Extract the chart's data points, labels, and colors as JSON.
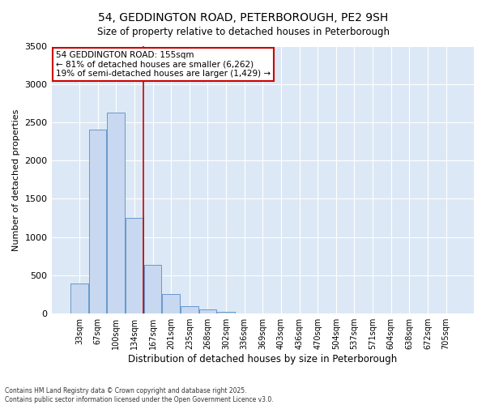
{
  "title_line1": "54, GEDDINGTON ROAD, PETERBOROUGH, PE2 9SH",
  "title_line2": "Size of property relative to detached houses in Peterborough",
  "xlabel": "Distribution of detached houses by size in Peterborough",
  "ylabel": "Number of detached properties",
  "categories": [
    "33sqm",
    "67sqm",
    "100sqm",
    "134sqm",
    "167sqm",
    "201sqm",
    "235sqm",
    "268sqm",
    "302sqm",
    "336sqm",
    "369sqm",
    "403sqm",
    "436sqm",
    "470sqm",
    "504sqm",
    "537sqm",
    "571sqm",
    "604sqm",
    "638sqm",
    "672sqm",
    "705sqm"
  ],
  "values": [
    390,
    2400,
    2630,
    1250,
    640,
    260,
    100,
    50,
    20,
    5,
    2,
    2,
    1,
    0,
    0,
    0,
    0,
    0,
    0,
    0,
    0
  ],
  "bar_color": "#c8d8f0",
  "bar_edge_color": "#6699cc",
  "vline_color": "#cc0000",
  "vline_position": 3.5,
  "annotation_text": "54 GEDDINGTON ROAD: 155sqm\n← 81% of detached houses are smaller (6,262)\n19% of semi-detached houses are larger (1,429) →",
  "annotation_box_edgecolor": "#cc0000",
  "ylim": [
    0,
    3500
  ],
  "yticks": [
    0,
    500,
    1000,
    1500,
    2000,
    2500,
    3000,
    3500
  ],
  "fig_background": "#ffffff",
  "plot_background": "#dce8f5",
  "grid_color": "#ffffff",
  "footer_line1": "Contains HM Land Registry data © Crown copyright and database right 2025.",
  "footer_line2": "Contains public sector information licensed under the Open Government Licence v3.0."
}
